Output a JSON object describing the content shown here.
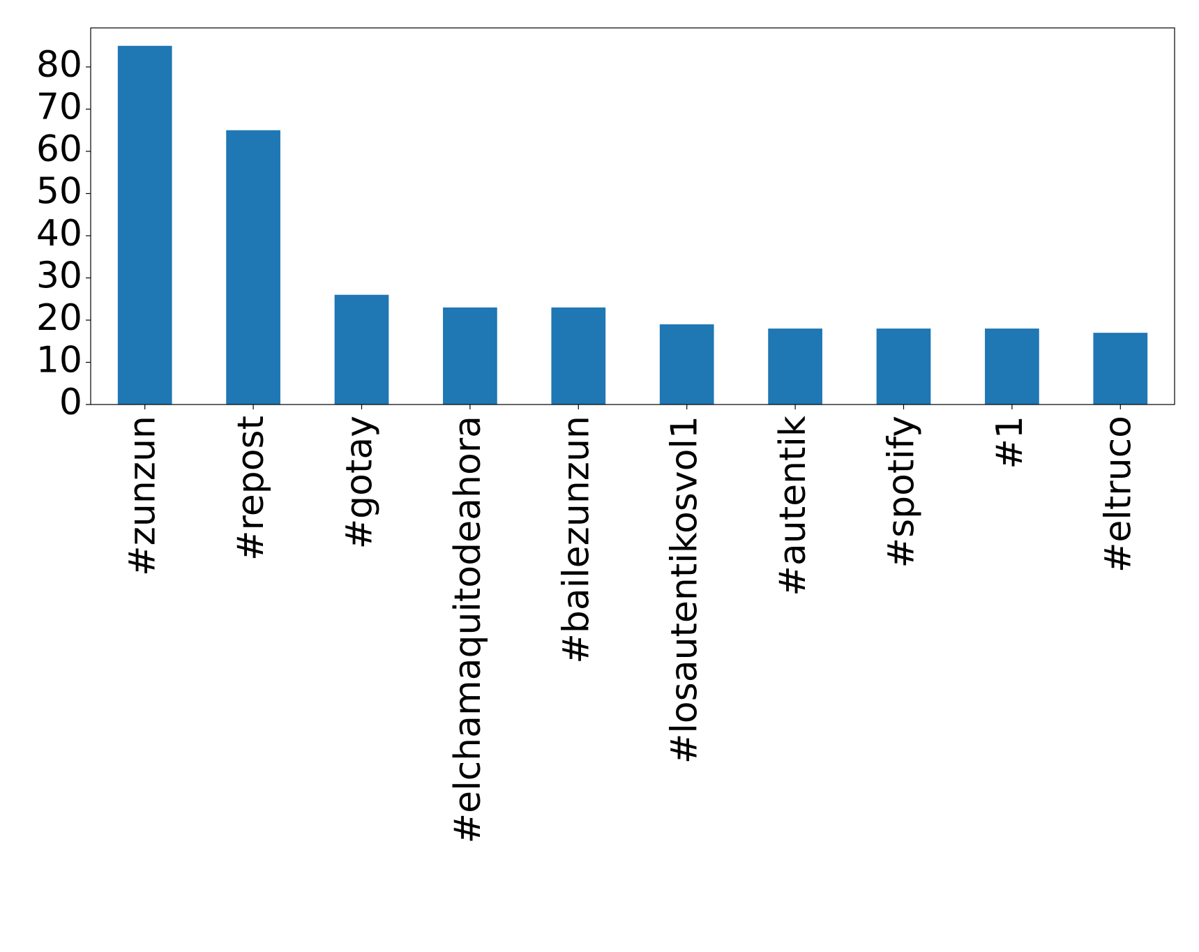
{
  "chart_data": {
    "type": "bar",
    "categories": [
      "#zunzun",
      "#repost",
      "#gotay",
      "#elchamaquitodeahora",
      "#bailezunzun",
      "#losautentikosvol1",
      "#autentik",
      "#spotify",
      "#1",
      "#eltruco"
    ],
    "values": [
      85,
      65,
      26,
      23,
      23,
      19,
      18,
      18,
      18,
      17
    ],
    "color": "#1f77b4",
    "ylim": [
      0,
      89.25
    ],
    "yticks": [
      0,
      10,
      20,
      30,
      40,
      50,
      60,
      70,
      80
    ],
    "grid": false
  }
}
